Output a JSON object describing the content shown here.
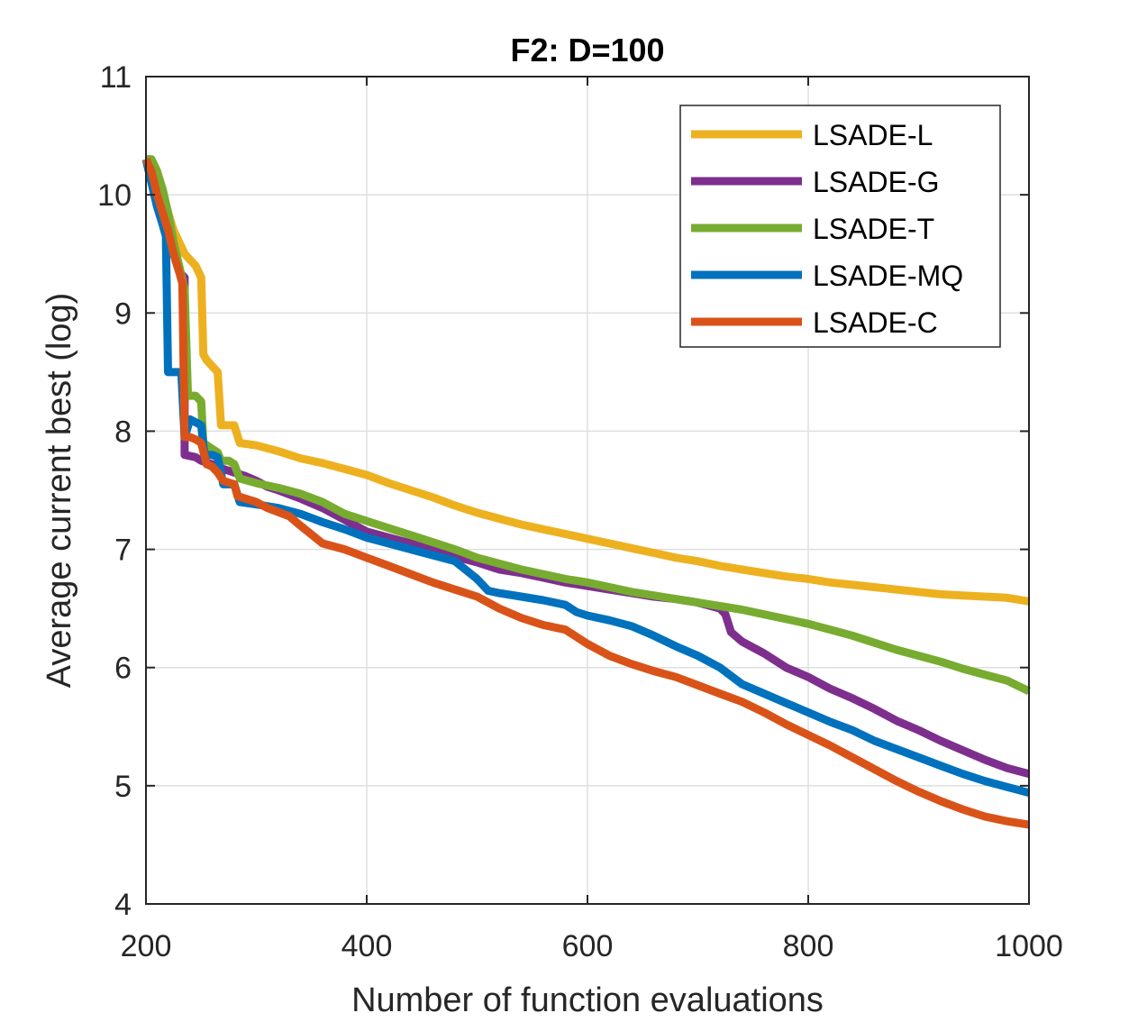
{
  "chart_data": {
    "type": "line",
    "title": "F2: D=100",
    "xlabel": "Number of function evaluations",
    "ylabel": "Average current best (log)",
    "xlim": [
      200,
      1000
    ],
    "ylim": [
      4,
      11
    ],
    "xticks": [
      200,
      400,
      600,
      800,
      1000
    ],
    "yticks": [
      4,
      5,
      6,
      7,
      8,
      9,
      10,
      11
    ],
    "grid": true,
    "legend_position": "top-right",
    "series": [
      {
        "name": "LSADE-L",
        "color": "#EDB120",
        "points": [
          [
            200,
            10.3
          ],
          [
            205,
            10.3
          ],
          [
            210,
            10.2
          ],
          [
            215,
            10.0
          ],
          [
            220,
            9.85
          ],
          [
            225,
            9.7
          ],
          [
            230,
            9.6
          ],
          [
            235,
            9.5
          ],
          [
            240,
            9.45
          ],
          [
            245,
            9.4
          ],
          [
            250,
            9.3
          ],
          [
            252,
            8.65
          ],
          [
            255,
            8.6
          ],
          [
            260,
            8.55
          ],
          [
            265,
            8.5
          ],
          [
            268,
            8.05
          ],
          [
            270,
            8.05
          ],
          [
            280,
            8.05
          ],
          [
            285,
            7.9
          ],
          [
            300,
            7.88
          ],
          [
            320,
            7.83
          ],
          [
            340,
            7.77
          ],
          [
            360,
            7.73
          ],
          [
            380,
            7.68
          ],
          [
            400,
            7.63
          ],
          [
            420,
            7.56
          ],
          [
            440,
            7.5
          ],
          [
            460,
            7.44
          ],
          [
            480,
            7.37
          ],
          [
            500,
            7.31
          ],
          [
            520,
            7.26
          ],
          [
            540,
            7.21
          ],
          [
            560,
            7.17
          ],
          [
            580,
            7.13
          ],
          [
            600,
            7.09
          ],
          [
            620,
            7.05
          ],
          [
            640,
            7.01
          ],
          [
            660,
            6.97
          ],
          [
            680,
            6.93
          ],
          [
            700,
            6.9
          ],
          [
            720,
            6.86
          ],
          [
            740,
            6.83
          ],
          [
            760,
            6.8
          ],
          [
            780,
            6.77
          ],
          [
            800,
            6.75
          ],
          [
            820,
            6.72
          ],
          [
            840,
            6.7
          ],
          [
            860,
            6.68
          ],
          [
            880,
            6.66
          ],
          [
            900,
            6.64
          ],
          [
            920,
            6.62
          ],
          [
            940,
            6.61
          ],
          [
            960,
            6.6
          ],
          [
            980,
            6.59
          ],
          [
            1000,
            6.56
          ]
        ]
      },
      {
        "name": "LSADE-G",
        "color": "#7E2F8E",
        "points": [
          [
            200,
            10.3
          ],
          [
            205,
            10.25
          ],
          [
            210,
            10.1
          ],
          [
            215,
            9.9
          ],
          [
            220,
            9.7
          ],
          [
            225,
            9.5
          ],
          [
            230,
            9.35
          ],
          [
            235,
            9.3
          ],
          [
            235,
            7.8
          ],
          [
            245,
            7.78
          ],
          [
            250,
            7.75
          ],
          [
            260,
            7.72
          ],
          [
            270,
            7.68
          ],
          [
            280,
            7.65
          ],
          [
            290,
            7.62
          ],
          [
            300,
            7.58
          ],
          [
            310,
            7.53
          ],
          [
            320,
            7.5
          ],
          [
            340,
            7.43
          ],
          [
            360,
            7.35
          ],
          [
            380,
            7.25
          ],
          [
            400,
            7.15
          ],
          [
            420,
            7.1
          ],
          [
            440,
            7.05
          ],
          [
            460,
            7.0
          ],
          [
            480,
            6.94
          ],
          [
            500,
            6.89
          ],
          [
            520,
            6.83
          ],
          [
            540,
            6.8
          ],
          [
            560,
            6.76
          ],
          [
            580,
            6.72
          ],
          [
            600,
            6.69
          ],
          [
            620,
            6.66
          ],
          [
            640,
            6.63
          ],
          [
            660,
            6.6
          ],
          [
            680,
            6.58
          ],
          [
            700,
            6.55
          ],
          [
            720,
            6.5
          ],
          [
            725,
            6.45
          ],
          [
            730,
            6.3
          ],
          [
            740,
            6.22
          ],
          [
            760,
            6.12
          ],
          [
            780,
            6.0
          ],
          [
            800,
            5.92
          ],
          [
            820,
            5.82
          ],
          [
            840,
            5.74
          ],
          [
            860,
            5.65
          ],
          [
            880,
            5.55
          ],
          [
            900,
            5.47
          ],
          [
            920,
            5.38
          ],
          [
            940,
            5.3
          ],
          [
            960,
            5.22
          ],
          [
            980,
            5.15
          ],
          [
            1000,
            5.1
          ]
        ]
      },
      {
        "name": "LSADE-T",
        "color": "#77AC30",
        "points": [
          [
            200,
            10.3
          ],
          [
            205,
            10.3
          ],
          [
            210,
            10.2
          ],
          [
            215,
            10.05
          ],
          [
            220,
            9.85
          ],
          [
            225,
            9.6
          ],
          [
            230,
            9.4
          ],
          [
            235,
            9.2
          ],
          [
            238,
            8.3
          ],
          [
            245,
            8.3
          ],
          [
            250,
            8.25
          ],
          [
            252,
            7.9
          ],
          [
            260,
            7.85
          ],
          [
            265,
            7.82
          ],
          [
            268,
            7.75
          ],
          [
            275,
            7.75
          ],
          [
            280,
            7.72
          ],
          [
            285,
            7.6
          ],
          [
            300,
            7.56
          ],
          [
            320,
            7.52
          ],
          [
            340,
            7.47
          ],
          [
            360,
            7.4
          ],
          [
            380,
            7.3
          ],
          [
            400,
            7.24
          ],
          [
            420,
            7.18
          ],
          [
            440,
            7.12
          ],
          [
            460,
            7.06
          ],
          [
            480,
            7.0
          ],
          [
            500,
            6.93
          ],
          [
            520,
            6.88
          ],
          [
            540,
            6.83
          ],
          [
            560,
            6.79
          ],
          [
            580,
            6.75
          ],
          [
            600,
            6.72
          ],
          [
            620,
            6.68
          ],
          [
            640,
            6.64
          ],
          [
            660,
            6.61
          ],
          [
            680,
            6.58
          ],
          [
            700,
            6.55
          ],
          [
            720,
            6.52
          ],
          [
            740,
            6.49
          ],
          [
            760,
            6.45
          ],
          [
            780,
            6.41
          ],
          [
            800,
            6.37
          ],
          [
            820,
            6.32
          ],
          [
            840,
            6.27
          ],
          [
            860,
            6.21
          ],
          [
            880,
            6.15
          ],
          [
            900,
            6.1
          ],
          [
            920,
            6.05
          ],
          [
            940,
            5.99
          ],
          [
            960,
            5.94
          ],
          [
            980,
            5.89
          ],
          [
            1000,
            5.8
          ]
        ]
      },
      {
        "name": "LSADE-MQ",
        "color": "#0072BD",
        "points": [
          [
            200,
            10.3
          ],
          [
            205,
            10.1
          ],
          [
            210,
            9.9
          ],
          [
            215,
            9.75
          ],
          [
            218,
            9.65
          ],
          [
            220,
            8.5
          ],
          [
            230,
            8.5
          ],
          [
            232,
            8.5
          ],
          [
            235,
            7.95
          ],
          [
            240,
            8.1
          ],
          [
            250,
            8.05
          ],
          [
            253,
            7.8
          ],
          [
            260,
            7.8
          ],
          [
            265,
            7.78
          ],
          [
            270,
            7.55
          ],
          [
            280,
            7.55
          ],
          [
            285,
            7.4
          ],
          [
            300,
            7.38
          ],
          [
            320,
            7.35
          ],
          [
            340,
            7.3
          ],
          [
            360,
            7.23
          ],
          [
            380,
            7.17
          ],
          [
            400,
            7.1
          ],
          [
            420,
            7.05
          ],
          [
            440,
            7.0
          ],
          [
            460,
            6.95
          ],
          [
            480,
            6.9
          ],
          [
            500,
            6.75
          ],
          [
            505,
            6.7
          ],
          [
            510,
            6.65
          ],
          [
            520,
            6.63
          ],
          [
            540,
            6.6
          ],
          [
            560,
            6.57
          ],
          [
            580,
            6.53
          ],
          [
            590,
            6.47
          ],
          [
            600,
            6.44
          ],
          [
            620,
            6.4
          ],
          [
            640,
            6.35
          ],
          [
            660,
            6.27
          ],
          [
            680,
            6.18
          ],
          [
            700,
            6.1
          ],
          [
            720,
            6.0
          ],
          [
            740,
            5.86
          ],
          [
            760,
            5.78
          ],
          [
            780,
            5.7
          ],
          [
            800,
            5.62
          ],
          [
            820,
            5.54
          ],
          [
            840,
            5.47
          ],
          [
            860,
            5.38
          ],
          [
            880,
            5.31
          ],
          [
            900,
            5.24
          ],
          [
            920,
            5.17
          ],
          [
            940,
            5.1
          ],
          [
            960,
            5.04
          ],
          [
            980,
            4.99
          ],
          [
            1000,
            4.94
          ]
        ]
      },
      {
        "name": "LSADE-C",
        "color": "#D95319",
        "points": [
          [
            200,
            10.3
          ],
          [
            205,
            10.2
          ],
          [
            210,
            10.0
          ],
          [
            215,
            9.85
          ],
          [
            220,
            9.7
          ],
          [
            225,
            9.5
          ],
          [
            230,
            9.35
          ],
          [
            233,
            9.25
          ],
          [
            235,
            7.95
          ],
          [
            240,
            7.95
          ],
          [
            245,
            7.93
          ],
          [
            250,
            7.9
          ],
          [
            255,
            7.72
          ],
          [
            260,
            7.7
          ],
          [
            265,
            7.65
          ],
          [
            270,
            7.58
          ],
          [
            280,
            7.55
          ],
          [
            283,
            7.45
          ],
          [
            300,
            7.4
          ],
          [
            310,
            7.35
          ],
          [
            330,
            7.28
          ],
          [
            340,
            7.2
          ],
          [
            360,
            7.05
          ],
          [
            380,
            7.0
          ],
          [
            400,
            6.93
          ],
          [
            420,
            6.86
          ],
          [
            440,
            6.79
          ],
          [
            460,
            6.72
          ],
          [
            480,
            6.66
          ],
          [
            500,
            6.6
          ],
          [
            520,
            6.5
          ],
          [
            540,
            6.42
          ],
          [
            560,
            6.36
          ],
          [
            580,
            6.32
          ],
          [
            600,
            6.2
          ],
          [
            620,
            6.1
          ],
          [
            640,
            6.03
          ],
          [
            660,
            5.97
          ],
          [
            680,
            5.92
          ],
          [
            700,
            5.85
          ],
          [
            720,
            5.78
          ],
          [
            740,
            5.71
          ],
          [
            760,
            5.62
          ],
          [
            780,
            5.52
          ],
          [
            800,
            5.43
          ],
          [
            820,
            5.34
          ],
          [
            840,
            5.24
          ],
          [
            860,
            5.14
          ],
          [
            880,
            5.04
          ],
          [
            900,
            4.95
          ],
          [
            920,
            4.87
          ],
          [
            940,
            4.8
          ],
          [
            960,
            4.74
          ],
          [
            980,
            4.7
          ],
          [
            1000,
            4.67
          ]
        ]
      }
    ]
  }
}
